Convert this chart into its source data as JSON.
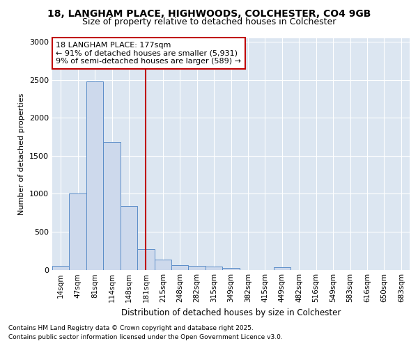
{
  "title_line1": "18, LANGHAM PLACE, HIGHWOODS, COLCHESTER, CO4 9GB",
  "title_line2": "Size of property relative to detached houses in Colchester",
  "xlabel": "Distribution of detached houses by size in Colchester",
  "ylabel": "Number of detached properties",
  "footnote1": "Contains HM Land Registry data © Crown copyright and database right 2025.",
  "footnote2": "Contains public sector information licensed under the Open Government Licence v3.0.",
  "annotation_title": "18 LANGHAM PLACE: 177sqm",
  "annotation_line2": "← 91% of detached houses are smaller (5,931)",
  "annotation_line3": "9% of semi-detached houses are larger (589) →",
  "bar_labels": [
    "14sqm",
    "47sqm",
    "81sqm",
    "114sqm",
    "148sqm",
    "181sqm",
    "215sqm",
    "248sqm",
    "282sqm",
    "315sqm",
    "349sqm",
    "382sqm",
    "415sqm",
    "449sqm",
    "482sqm",
    "516sqm",
    "549sqm",
    "583sqm",
    "616sqm",
    "650sqm",
    "683sqm"
  ],
  "bar_values": [
    50,
    1000,
    2480,
    1680,
    840,
    275,
    130,
    60,
    55,
    45,
    20,
    0,
    0,
    35,
    0,
    0,
    0,
    0,
    0,
    0,
    0
  ],
  "bar_color": "#cdd9ec",
  "bar_edge_color": "#5b8dc8",
  "vline_x": 5,
  "vline_color": "#c00000",
  "annotation_box_color": "#c00000",
  "fig_background_color": "#ffffff",
  "plot_bg_color": "#dce6f1",
  "ylim": [
    0,
    3050
  ],
  "yticks": [
    0,
    500,
    1000,
    1500,
    2000,
    2500,
    3000
  ],
  "title_fontsize": 10,
  "subtitle_fontsize": 9,
  "ylabel_fontsize": 8,
  "xlabel_fontsize": 8.5,
  "tick_fontsize": 8,
  "xtick_fontsize": 7.5,
  "annot_fontsize": 8,
  "footnote_fontsize": 6.5
}
